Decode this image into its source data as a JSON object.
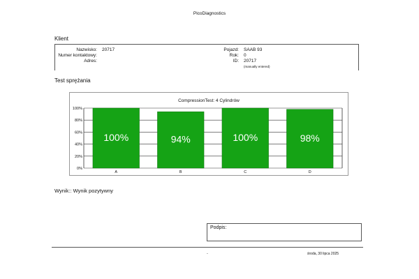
{
  "app_title": "PicoDiagnostics",
  "client": {
    "heading": "Klient",
    "surname_label": "Nazwisko:",
    "surname_value": "20717",
    "contact_label": "Numer kontaktowy:",
    "contact_value": "",
    "address_label": "Adres:",
    "address_value": "",
    "vehicle_label": "Pojazd:",
    "vehicle_value": "SAAB 93",
    "year_label": "Rok:",
    "year_value": "0",
    "id_label": "ID:",
    "id_value": "20717",
    "id_note": "(manually entered)"
  },
  "test": {
    "heading": "Test sprężania"
  },
  "chart_data": {
    "type": "bar",
    "title": "CompressionTest: 4 Cylindrów",
    "categories": [
      "A",
      "B",
      "C",
      "D"
    ],
    "values": [
      100,
      94,
      100,
      98
    ],
    "data_labels": [
      "100%",
      "94%",
      "100%",
      "98%"
    ],
    "ylim": [
      0,
      100
    ],
    "yticks": [
      0,
      20,
      40,
      60,
      80,
      100
    ],
    "ytick_labels": [
      "0%",
      "20%",
      "40%",
      "60%",
      "80%",
      "100%"
    ],
    "xlabel": "",
    "ylabel": "",
    "grid": true,
    "bar_color": "#15a315",
    "label_color": "#ffffff"
  },
  "result_text": "Wynik:: Wynik pozytywny",
  "signature_label": "Podpis:",
  "footer": {
    "dash": "-",
    "date": "środa, 30 lipca 2025"
  }
}
